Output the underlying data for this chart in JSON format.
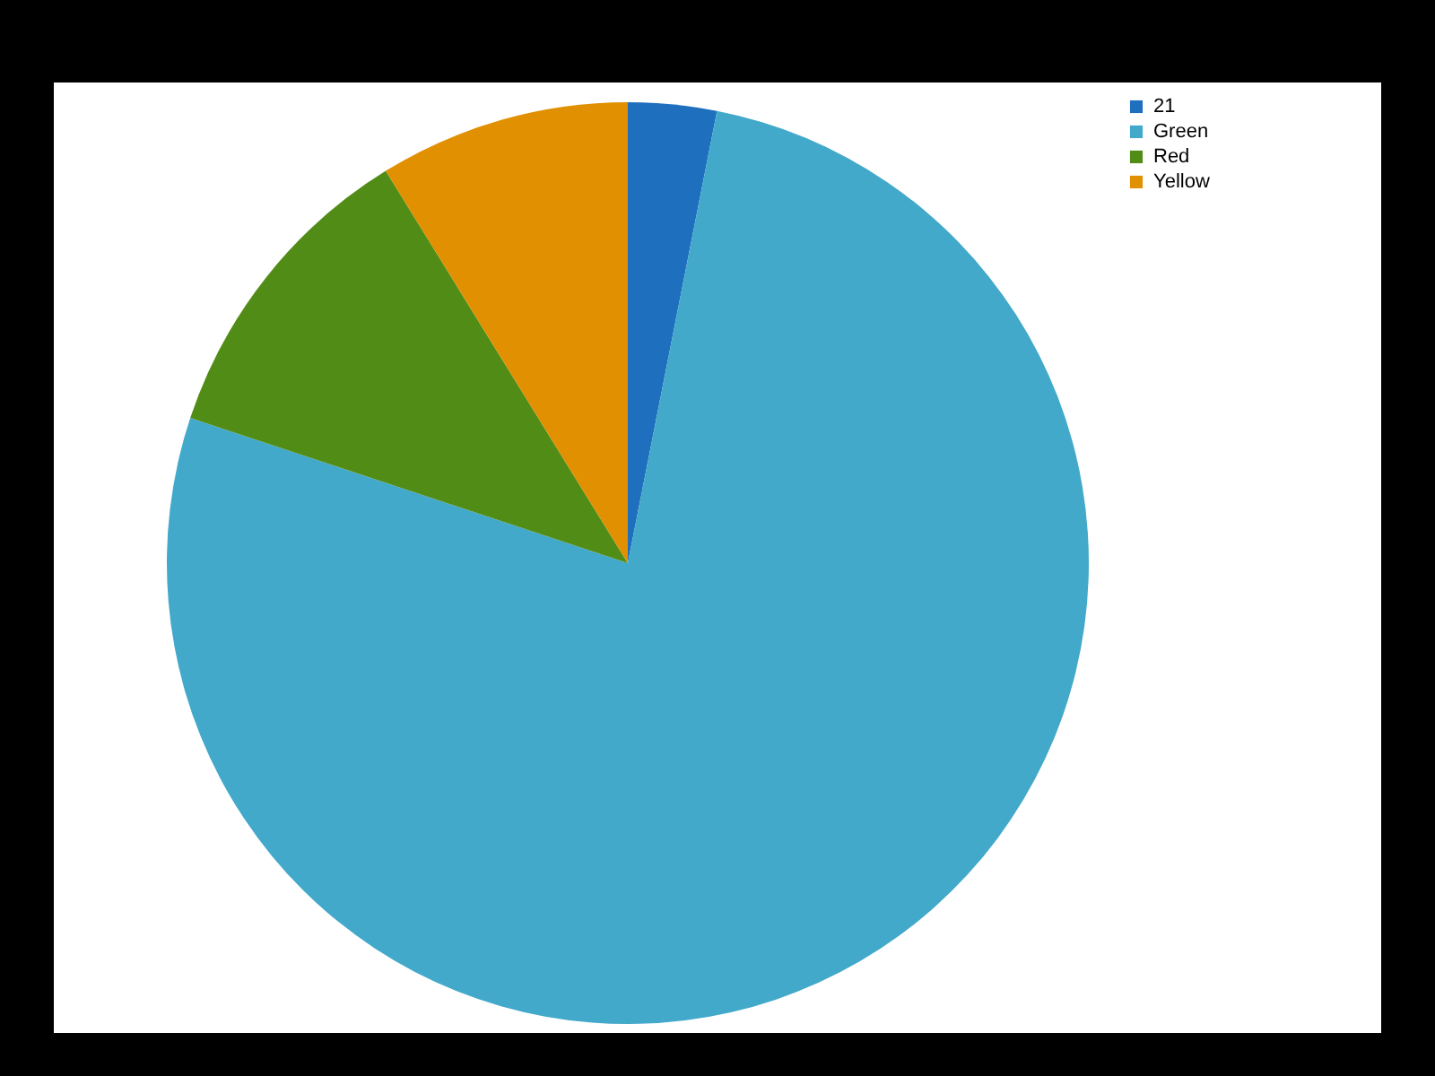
{
  "chart_data": {
    "type": "pie",
    "categories": [
      "21",
      "Green",
      "Red",
      "Yellow"
    ],
    "values": [
      3.1,
      77.0,
      11.1,
      8.8
    ],
    "colors": [
      "#1f6fbf",
      "#42a9ca",
      "#518c17",
      "#e09000"
    ],
    "legend": "right"
  }
}
